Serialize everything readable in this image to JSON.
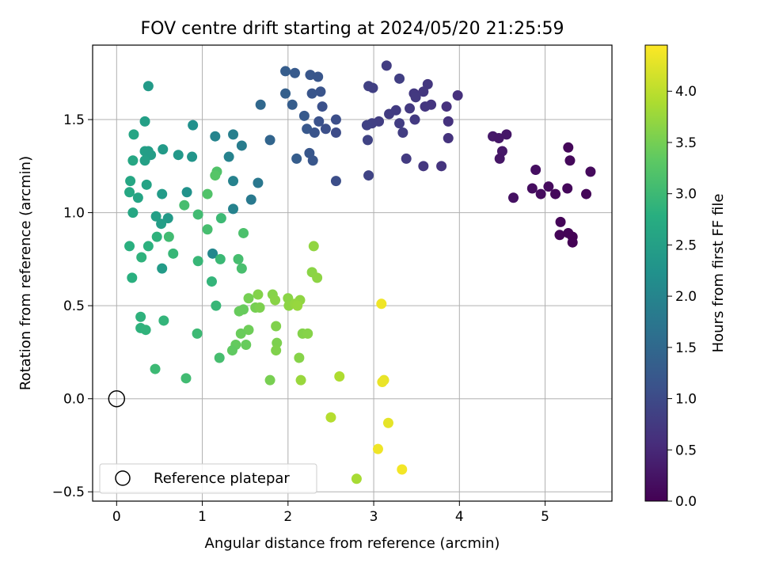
{
  "chart_data": {
    "type": "scatter",
    "title": "FOV centre drift starting at 2024/05/20 21:25:59",
    "xlabel": "Angular distance from reference (arcmin)",
    "ylabel": "Rotation from reference (arcmin)",
    "xlim": [
      -0.28,
      5.78
    ],
    "ylim": [
      -0.55,
      1.9
    ],
    "xticks": [
      0,
      1,
      2,
      3,
      4,
      5
    ],
    "yticks": [
      -0.5,
      0.0,
      0.5,
      1.0,
      1.5
    ],
    "xtick_labels": [
      "0",
      "1",
      "2",
      "3",
      "4",
      "5"
    ],
    "ytick_labels": [
      "−0.5",
      "0.0",
      "0.5",
      "1.0",
      "1.5"
    ],
    "grid": true,
    "colormap": "viridis",
    "colorbar": {
      "label": "Hours from first FF file",
      "range": [
        0,
        4.45
      ],
      "ticks": [
        0,
        0.5,
        1.0,
        1.5,
        2.0,
        2.5,
        3.0,
        3.5,
        4.0
      ],
      "tick_labels": [
        "0.0",
        "0.5",
        "1.0",
        "1.5",
        "2.0",
        "2.5",
        "3.0",
        "3.5",
        "4.0"
      ]
    },
    "legend": {
      "position": "lower-left",
      "entries": [
        "Reference platepar"
      ]
    },
    "reference_point": {
      "x": 0,
      "y": 0
    },
    "points": [
      {
        "x": 4.39,
        "y": 1.41,
        "c": 0.3
      },
      {
        "x": 4.46,
        "y": 1.4,
        "c": 0.28
      },
      {
        "x": 4.55,
        "y": 1.42,
        "c": 0.27
      },
      {
        "x": 4.5,
        "y": 1.33,
        "c": 0.29
      },
      {
        "x": 4.47,
        "y": 1.29,
        "c": 0.26
      },
      {
        "x": 4.63,
        "y": 1.08,
        "c": 0.2
      },
      {
        "x": 4.89,
        "y": 1.23,
        "c": 0.18
      },
      {
        "x": 4.85,
        "y": 1.13,
        "c": 0.15
      },
      {
        "x": 4.95,
        "y": 1.1,
        "c": 0.14
      },
      {
        "x": 5.04,
        "y": 1.14,
        "c": 0.13
      },
      {
        "x": 5.12,
        "y": 1.1,
        "c": 0.1
      },
      {
        "x": 5.26,
        "y": 1.13,
        "c": 0.08
      },
      {
        "x": 5.27,
        "y": 1.35,
        "c": 0.07
      },
      {
        "x": 5.29,
        "y": 1.28,
        "c": 0.09
      },
      {
        "x": 5.48,
        "y": 1.1,
        "c": 0.06
      },
      {
        "x": 5.53,
        "y": 1.22,
        "c": 0.12
      },
      {
        "x": 5.18,
        "y": 0.95,
        "c": 0.05
      },
      {
        "x": 5.17,
        "y": 0.88,
        "c": 0.04
      },
      {
        "x": 5.27,
        "y": 0.89,
        "c": 0.03
      },
      {
        "x": 5.32,
        "y": 0.87,
        "c": 0.02
      },
      {
        "x": 5.32,
        "y": 0.84,
        "c": 0.01
      },
      {
        "x": 3.15,
        "y": 1.79,
        "c": 0.8
      },
      {
        "x": 3.3,
        "y": 1.72,
        "c": 0.82
      },
      {
        "x": 2.94,
        "y": 1.68,
        "c": 0.85
      },
      {
        "x": 2.99,
        "y": 1.67,
        "c": 0.84
      },
      {
        "x": 3.63,
        "y": 1.69,
        "c": 0.7
      },
      {
        "x": 3.47,
        "y": 1.64,
        "c": 0.72
      },
      {
        "x": 3.58,
        "y": 1.65,
        "c": 0.71
      },
      {
        "x": 3.49,
        "y": 1.62,
        "c": 0.73
      },
      {
        "x": 3.98,
        "y": 1.63,
        "c": 0.6
      },
      {
        "x": 3.67,
        "y": 1.58,
        "c": 0.68
      },
      {
        "x": 3.6,
        "y": 1.57,
        "c": 0.69
      },
      {
        "x": 3.85,
        "y": 1.57,
        "c": 0.62
      },
      {
        "x": 3.42,
        "y": 1.56,
        "c": 0.74
      },
      {
        "x": 3.18,
        "y": 1.53,
        "c": 0.78
      },
      {
        "x": 3.26,
        "y": 1.55,
        "c": 0.77
      },
      {
        "x": 3.48,
        "y": 1.5,
        "c": 0.75
      },
      {
        "x": 3.06,
        "y": 1.49,
        "c": 0.81
      },
      {
        "x": 2.98,
        "y": 1.48,
        "c": 0.83
      },
      {
        "x": 2.92,
        "y": 1.47,
        "c": 0.86
      },
      {
        "x": 3.3,
        "y": 1.48,
        "c": 0.79
      },
      {
        "x": 3.34,
        "y": 1.43,
        "c": 0.8
      },
      {
        "x": 3.87,
        "y": 1.49,
        "c": 0.63
      },
      {
        "x": 3.87,
        "y": 1.4,
        "c": 0.64
      },
      {
        "x": 2.93,
        "y": 1.39,
        "c": 0.88
      },
      {
        "x": 3.38,
        "y": 1.29,
        "c": 0.76
      },
      {
        "x": 3.58,
        "y": 1.25,
        "c": 0.7
      },
      {
        "x": 3.79,
        "y": 1.25,
        "c": 0.66
      },
      {
        "x": 2.94,
        "y": 1.2,
        "c": 0.9
      },
      {
        "x": 1.97,
        "y": 1.76,
        "c": 1.3
      },
      {
        "x": 2.08,
        "y": 1.75,
        "c": 1.25
      },
      {
        "x": 2.26,
        "y": 1.74,
        "c": 1.2
      },
      {
        "x": 2.35,
        "y": 1.73,
        "c": 1.18
      },
      {
        "x": 2.38,
        "y": 1.65,
        "c": 1.15
      },
      {
        "x": 2.28,
        "y": 1.64,
        "c": 1.17
      },
      {
        "x": 1.97,
        "y": 1.64,
        "c": 1.35
      },
      {
        "x": 2.05,
        "y": 1.58,
        "c": 1.3
      },
      {
        "x": 2.4,
        "y": 1.57,
        "c": 1.1
      },
      {
        "x": 1.68,
        "y": 1.58,
        "c": 1.5
      },
      {
        "x": 2.19,
        "y": 1.52,
        "c": 1.25
      },
      {
        "x": 2.56,
        "y": 1.5,
        "c": 1.05
      },
      {
        "x": 2.36,
        "y": 1.49,
        "c": 1.12
      },
      {
        "x": 2.22,
        "y": 1.45,
        "c": 1.22
      },
      {
        "x": 2.44,
        "y": 1.45,
        "c": 1.08
      },
      {
        "x": 2.31,
        "y": 1.43,
        "c": 1.15
      },
      {
        "x": 2.56,
        "y": 1.43,
        "c": 1.02
      },
      {
        "x": 1.79,
        "y": 1.39,
        "c": 1.45
      },
      {
        "x": 2.25,
        "y": 1.32,
        "c": 1.2
      },
      {
        "x": 2.1,
        "y": 1.29,
        "c": 1.3
      },
      {
        "x": 2.29,
        "y": 1.28,
        "c": 1.18
      },
      {
        "x": 2.56,
        "y": 1.17,
        "c": 1.05
      },
      {
        "x": 0.37,
        "y": 1.68,
        "c": 2.4
      },
      {
        "x": 0.33,
        "y": 1.49,
        "c": 2.5
      },
      {
        "x": 0.89,
        "y": 1.47,
        "c": 2.2
      },
      {
        "x": 0.2,
        "y": 1.42,
        "c": 2.6
      },
      {
        "x": 1.15,
        "y": 1.41,
        "c": 2.0
      },
      {
        "x": 1.36,
        "y": 1.42,
        "c": 1.9
      },
      {
        "x": 1.46,
        "y": 1.36,
        "c": 1.85
      },
      {
        "x": 0.33,
        "y": 1.33,
        "c": 2.5
      },
      {
        "x": 0.37,
        "y": 1.33,
        "c": 2.48
      },
      {
        "x": 0.4,
        "y": 1.31,
        "c": 2.45
      },
      {
        "x": 0.54,
        "y": 1.34,
        "c": 2.4
      },
      {
        "x": 0.72,
        "y": 1.31,
        "c": 2.35
      },
      {
        "x": 0.88,
        "y": 1.3,
        "c": 2.3
      },
      {
        "x": 1.31,
        "y": 1.3,
        "c": 1.95
      },
      {
        "x": 0.19,
        "y": 1.28,
        "c": 2.62
      },
      {
        "x": 0.33,
        "y": 1.28,
        "c": 2.52
      },
      {
        "x": 1.36,
        "y": 1.17,
        "c": 1.95
      },
      {
        "x": 0.16,
        "y": 1.17,
        "c": 2.63
      },
      {
        "x": 0.35,
        "y": 1.15,
        "c": 2.55
      },
      {
        "x": 1.65,
        "y": 1.16,
        "c": 1.75
      },
      {
        "x": 0.15,
        "y": 1.11,
        "c": 2.65
      },
      {
        "x": 0.25,
        "y": 1.08,
        "c": 2.58
      },
      {
        "x": 0.53,
        "y": 1.1,
        "c": 2.42
      },
      {
        "x": 0.82,
        "y": 1.11,
        "c": 2.25
      },
      {
        "x": 1.57,
        "y": 1.07,
        "c": 1.8
      },
      {
        "x": 1.36,
        "y": 1.02,
        "c": 1.95
      },
      {
        "x": 0.19,
        "y": 1.0,
        "c": 2.62
      },
      {
        "x": 0.46,
        "y": 0.98,
        "c": 2.5
      },
      {
        "x": 0.6,
        "y": 0.97,
        "c": 2.4
      },
      {
        "x": 0.52,
        "y": 0.94,
        "c": 2.45
      },
      {
        "x": 1.12,
        "y": 0.78,
        "c": 2.05
      },
      {
        "x": 0.53,
        "y": 0.7,
        "c": 2.42
      },
      {
        "x": 1.17,
        "y": 1.22,
        "c": 3.2
      },
      {
        "x": 1.15,
        "y": 1.2,
        "c": 3.25
      },
      {
        "x": 1.06,
        "y": 1.1,
        "c": 3.2
      },
      {
        "x": 0.79,
        "y": 1.04,
        "c": 3.1
      },
      {
        "x": 0.95,
        "y": 0.99,
        "c": 3.05
      },
      {
        "x": 1.22,
        "y": 0.97,
        "c": 3.0
      },
      {
        "x": 1.06,
        "y": 0.91,
        "c": 3.1
      },
      {
        "x": 0.61,
        "y": 0.87,
        "c": 3.05
      },
      {
        "x": 0.47,
        "y": 0.87,
        "c": 2.85
      },
      {
        "x": 1.48,
        "y": 0.89,
        "c": 3.15
      },
      {
        "x": 0.15,
        "y": 0.82,
        "c": 2.8
      },
      {
        "x": 0.37,
        "y": 0.82,
        "c": 2.82
      },
      {
        "x": 0.66,
        "y": 0.78,
        "c": 2.95
      },
      {
        "x": 0.29,
        "y": 0.76,
        "c": 2.85
      },
      {
        "x": 1.21,
        "y": 0.75,
        "c": 2.98
      },
      {
        "x": 0.95,
        "y": 0.74,
        "c": 2.95
      },
      {
        "x": 1.42,
        "y": 0.75,
        "c": 3.1
      },
      {
        "x": 1.46,
        "y": 0.7,
        "c": 3.12
      },
      {
        "x": 0.18,
        "y": 0.65,
        "c": 2.8
      },
      {
        "x": 1.11,
        "y": 0.63,
        "c": 2.9
      },
      {
        "x": 1.16,
        "y": 0.5,
        "c": 2.95
      },
      {
        "x": 0.28,
        "y": 0.44,
        "c": 2.85
      },
      {
        "x": 0.55,
        "y": 0.42,
        "c": 2.9
      },
      {
        "x": 0.28,
        "y": 0.38,
        "c": 2.85
      },
      {
        "x": 0.34,
        "y": 0.37,
        "c": 2.87
      },
      {
        "x": 0.94,
        "y": 0.35,
        "c": 3.0
      },
      {
        "x": 0.45,
        "y": 0.16,
        "c": 3.0
      },
      {
        "x": 0.81,
        "y": 0.11,
        "c": 3.05
      },
      {
        "x": 1.2,
        "y": 0.22,
        "c": 3.1
      },
      {
        "x": 2.3,
        "y": 0.82,
        "c": 3.7
      },
      {
        "x": 2.28,
        "y": 0.68,
        "c": 3.65
      },
      {
        "x": 2.34,
        "y": 0.65,
        "c": 3.67
      },
      {
        "x": 1.65,
        "y": 0.56,
        "c": 3.6
      },
      {
        "x": 1.82,
        "y": 0.56,
        "c": 3.62
      },
      {
        "x": 1.54,
        "y": 0.54,
        "c": 3.5
      },
      {
        "x": 1.85,
        "y": 0.53,
        "c": 3.64
      },
      {
        "x": 2.0,
        "y": 0.54,
        "c": 3.65
      },
      {
        "x": 2.14,
        "y": 0.53,
        "c": 3.68
      },
      {
        "x": 2.01,
        "y": 0.5,
        "c": 3.66
      },
      {
        "x": 2.08,
        "y": 0.51,
        "c": 3.72
      },
      {
        "x": 2.11,
        "y": 0.5,
        "c": 3.74
      },
      {
        "x": 1.62,
        "y": 0.49,
        "c": 3.5
      },
      {
        "x": 1.67,
        "y": 0.49,
        "c": 3.55
      },
      {
        "x": 1.48,
        "y": 0.48,
        "c": 3.4
      },
      {
        "x": 1.43,
        "y": 0.47,
        "c": 3.4
      },
      {
        "x": 1.86,
        "y": 0.39,
        "c": 3.58
      },
      {
        "x": 1.54,
        "y": 0.37,
        "c": 3.45
      },
      {
        "x": 1.45,
        "y": 0.35,
        "c": 3.42
      },
      {
        "x": 2.17,
        "y": 0.35,
        "c": 3.6
      },
      {
        "x": 2.23,
        "y": 0.35,
        "c": 3.62
      },
      {
        "x": 1.39,
        "y": 0.29,
        "c": 3.38
      },
      {
        "x": 1.51,
        "y": 0.29,
        "c": 3.4
      },
      {
        "x": 1.87,
        "y": 0.3,
        "c": 3.55
      },
      {
        "x": 1.35,
        "y": 0.26,
        "c": 3.35
      },
      {
        "x": 1.86,
        "y": 0.26,
        "c": 3.58
      },
      {
        "x": 2.13,
        "y": 0.22,
        "c": 3.62
      },
      {
        "x": 1.79,
        "y": 0.1,
        "c": 3.52
      },
      {
        "x": 2.15,
        "y": 0.1,
        "c": 3.75
      },
      {
        "x": 2.6,
        "y": 0.12,
        "c": 3.9
      },
      {
        "x": 2.5,
        "y": -0.1,
        "c": 3.95
      },
      {
        "x": 2.8,
        "y": -0.43,
        "c": 3.85
      },
      {
        "x": 3.09,
        "y": 0.51,
        "c": 4.35
      },
      {
        "x": 3.12,
        "y": 0.1,
        "c": 4.3
      },
      {
        "x": 3.1,
        "y": 0.09,
        "c": 4.32
      },
      {
        "x": 3.17,
        "y": -0.13,
        "c": 4.28
      },
      {
        "x": 3.05,
        "y": -0.27,
        "c": 4.35
      },
      {
        "x": 3.33,
        "y": -0.38,
        "c": 4.38
      }
    ]
  }
}
